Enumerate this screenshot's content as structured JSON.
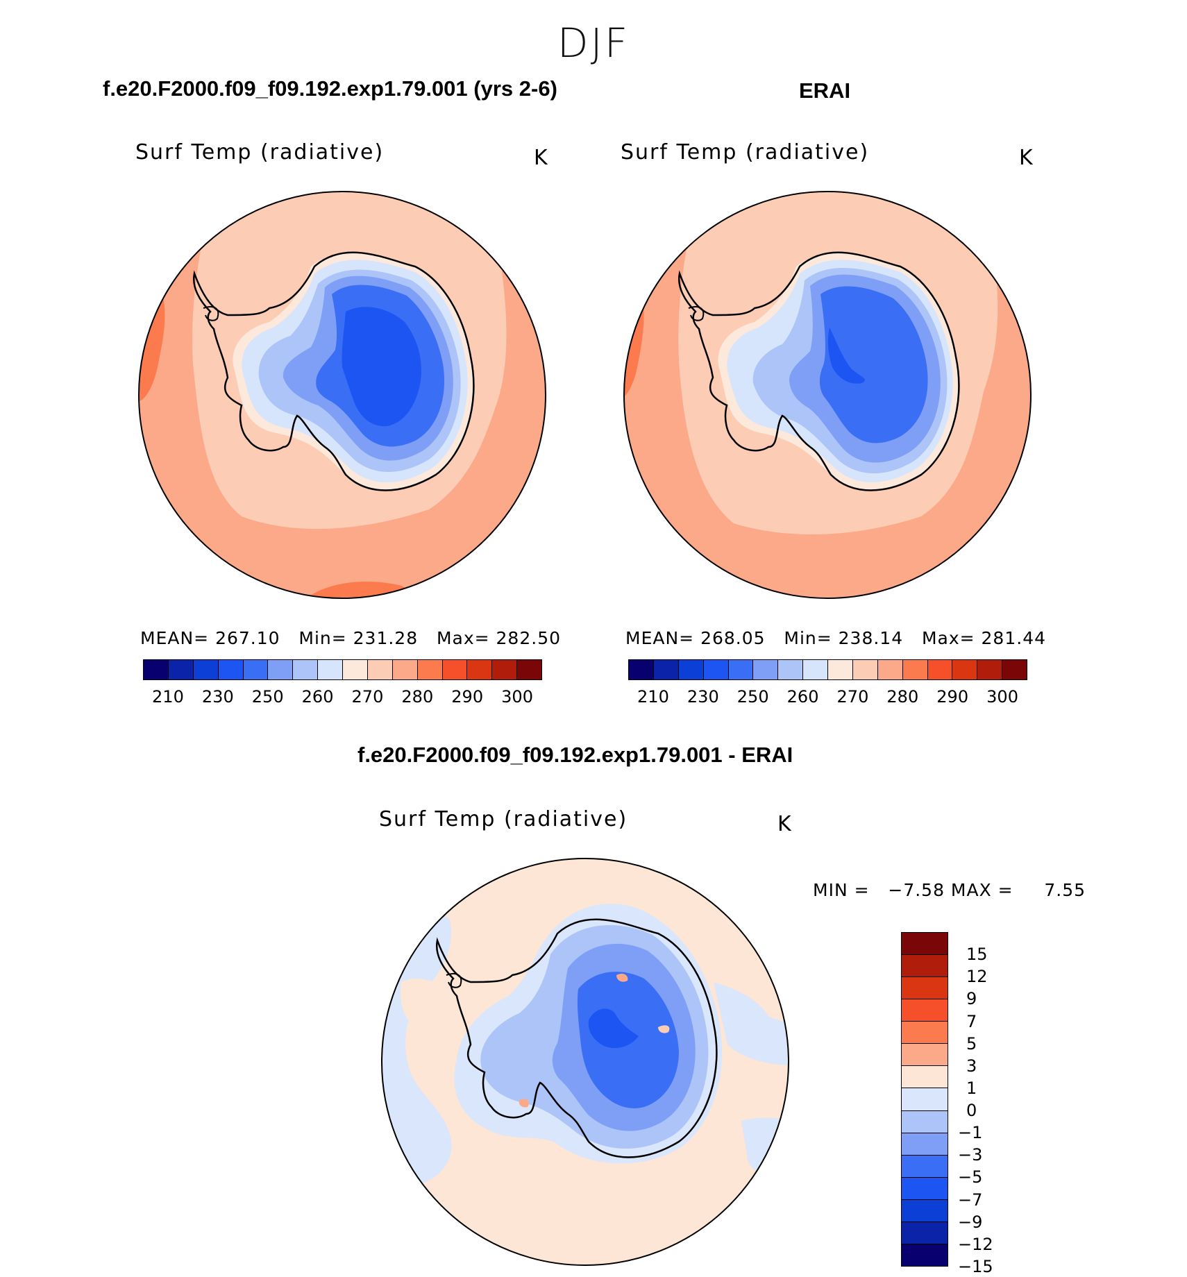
{
  "season": "DJF",
  "panels": {
    "model": {
      "title": "f.e20.F2000.f09_f09.192.exp1.79.001 (yrs 2-6)",
      "variable": "Surf Temp (radiative)",
      "unit": "K",
      "stats": "MEAN= 267.10   Min= 231.28   Max= 282.50"
    },
    "obs": {
      "title": "ERAI",
      "variable": "Surf Temp (radiative)",
      "unit": "K",
      "stats": "MEAN= 268.05   Min= 238.14   Max= 281.44"
    },
    "diff": {
      "title": "f.e20.F2000.f09_f09.192.exp1.79.001 - ERAI",
      "variable": "Surf Temp (radiative)",
      "unit": "K",
      "minmax": "MIN =   −7.58 MAX =     7.55"
    }
  },
  "colorbar_abs": {
    "colors": [
      "#08006e",
      "#0a23a8",
      "#0b3fd6",
      "#1d55f2",
      "#3a6ff5",
      "#7f9ff7",
      "#adc4f8",
      "#d6e5fb",
      "#fde9dc",
      "#fcccb4",
      "#fca98a",
      "#fb7b4f",
      "#f6502a",
      "#db3612",
      "#b01d0b",
      "#7a0607"
    ],
    "ticks": [
      "210",
      "230",
      "250",
      "260",
      "270",
      "280",
      "290",
      "300"
    ]
  },
  "colorbar_diff": {
    "colors": [
      "#7a0607",
      "#b01d0b",
      "#db3612",
      "#f6502a",
      "#fb7b4f",
      "#fca98a",
      "#fde6d6",
      "#d9e6fb",
      "#adc4f8",
      "#7f9ff7",
      "#3a6ff5",
      "#1d55f2",
      "#0b3fd6",
      "#0a23a8",
      "#08006e"
    ],
    "ticks": [
      "15",
      "12",
      "9",
      "7",
      "5",
      "3",
      "1",
      "0",
      "−1",
      "−3",
      "−5",
      "−7",
      "−9",
      "−12",
      "−15"
    ]
  },
  "map_colors": {
    "warm_out": "#fb7b4f",
    "warm_mid": "#fca98a",
    "warm_in": "#fcccb4",
    "coast_pale": "#fde9dc",
    "ice_1": "#d6e5fb",
    "ice_2": "#adc4f8",
    "ice_3": "#7f9ff7",
    "ice_4": "#3a6ff5",
    "ice_5": "#1d55f2",
    "diff_pos": "#fde6d6",
    "diff_neg": "#d9e6fb"
  }
}
